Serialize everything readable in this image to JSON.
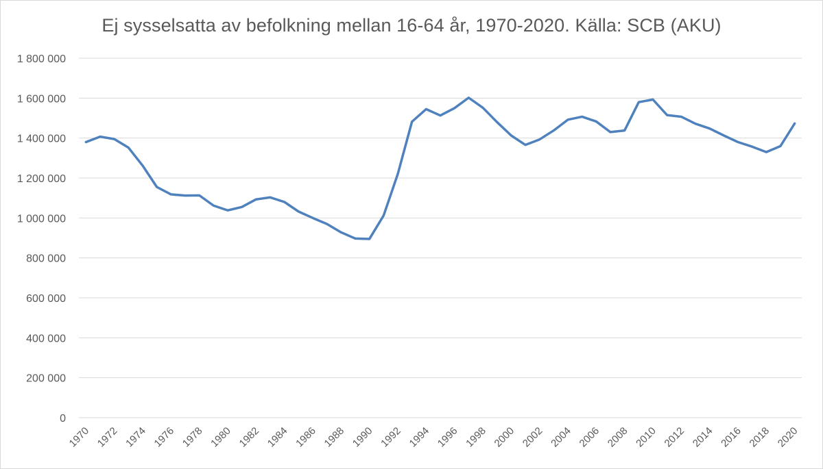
{
  "chart_data": {
    "type": "line",
    "title": "Ej sysselsatta av befolkning mellan 16-64 år, 1970-2020. Källa: SCB (AKU)",
    "xlabel": "",
    "ylabel": "",
    "ylim": [
      0,
      1800000
    ],
    "y_ticks": [
      0,
      200000,
      400000,
      600000,
      800000,
      1000000,
      1200000,
      1400000,
      1600000,
      1800000
    ],
    "y_tick_labels": [
      "0",
      "200 000",
      "400 000",
      "600 000",
      "800 000",
      "1 000 000",
      "1 200 000",
      "1 400 000",
      "1 600 000",
      "1 800 000"
    ],
    "x_tick_labels": [
      "1970",
      "1972",
      "1974",
      "1976",
      "1978",
      "1980",
      "1982",
      "1984",
      "1986",
      "1988",
      "1990",
      "1992",
      "1994",
      "1996",
      "1998",
      "2000",
      "2002",
      "2004",
      "2006",
      "2008",
      "2010",
      "2012",
      "2014",
      "2016",
      "2018",
      "2020"
    ],
    "grid": true,
    "legend": "none",
    "color": "#4f81bd",
    "x": [
      1970,
      1971,
      1972,
      1973,
      1974,
      1975,
      1976,
      1977,
      1978,
      1979,
      1980,
      1981,
      1982,
      1983,
      1984,
      1985,
      1986,
      1987,
      1988,
      1989,
      1990,
      1991,
      1992,
      1993,
      1994,
      1995,
      1996,
      1997,
      1998,
      1999,
      2000,
      2001,
      2002,
      2003,
      2004,
      2005,
      2006,
      2007,
      2008,
      2009,
      2010,
      2011,
      2012,
      2013,
      2014,
      2015,
      2016,
      2017,
      2018,
      2019,
      2020
    ],
    "series": [
      {
        "values": [
          1380000,
          1407000,
          1395000,
          1352000,
          1262000,
          1155000,
          1118000,
          1112000,
          1113000,
          1062000,
          1038000,
          1055000,
          1093000,
          1103000,
          1080000,
          1032000,
          1000000,
          970000,
          928000,
          897000,
          895000,
          1012000,
          1220000,
          1482000,
          1545000,
          1513000,
          1550000,
          1602000,
          1552000,
          1480000,
          1413000,
          1366000,
          1393000,
          1438000,
          1492000,
          1507000,
          1483000,
          1430000,
          1438000,
          1580000,
          1593000,
          1515000,
          1507000,
          1472000,
          1448000,
          1413000,
          1380000,
          1357000,
          1330000,
          1360000,
          1473000
        ]
      }
    ]
  }
}
